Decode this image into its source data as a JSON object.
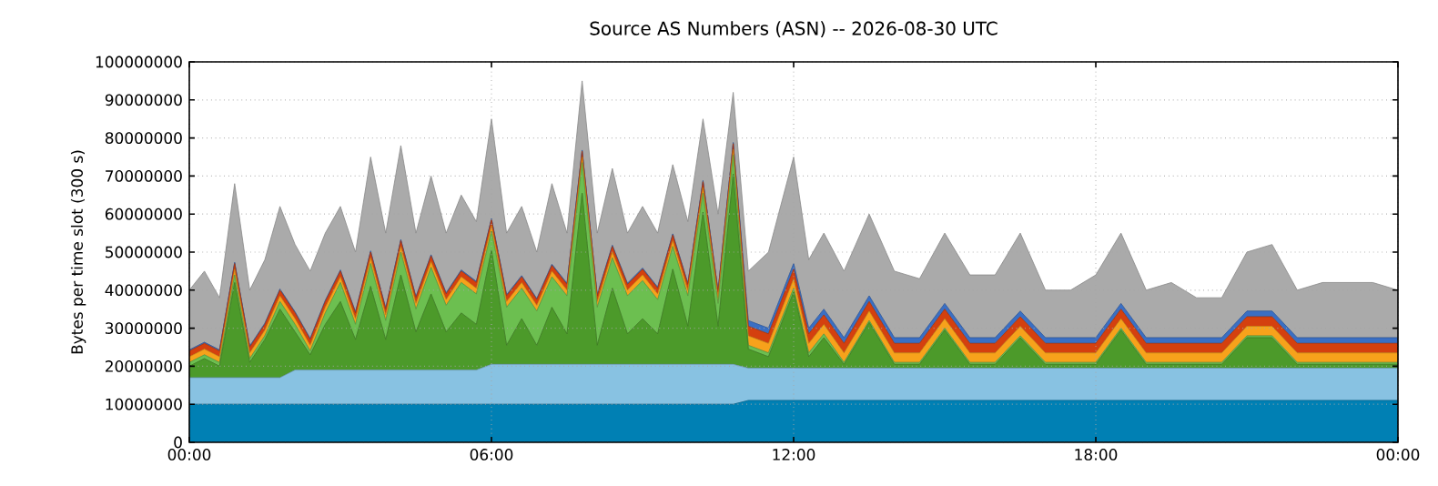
{
  "chart_data": {
    "type": "area",
    "stacked": true,
    "title": "Source AS Numbers (ASN) -- 2026-08-30 UTC",
    "ylabel": "Bytes per time slot (300 s)",
    "grid": true,
    "xlim": [
      0,
      24
    ],
    "xticks": [
      {
        "value": 0,
        "label": "00:00"
      },
      {
        "value": 6,
        "label": "06:00"
      },
      {
        "value": 12,
        "label": "12:00"
      },
      {
        "value": 18,
        "label": "18:00"
      },
      {
        "value": 24,
        "label": "00:00"
      }
    ],
    "ylim": [
      0,
      100000000
    ],
    "yticks": [
      0,
      10000000,
      20000000,
      30000000,
      40000000,
      50000000,
      60000000,
      70000000,
      80000000,
      90000000,
      100000000
    ],
    "x": [
      0,
      0.3,
      0.6,
      0.9,
      1.2,
      1.5,
      1.8,
      2.1,
      2.4,
      2.7,
      3.0,
      3.3,
      3.6,
      3.9,
      4.2,
      4.5,
      4.8,
      5.1,
      5.4,
      5.7,
      6.0,
      6.3,
      6.6,
      6.9,
      7.2,
      7.5,
      7.8,
      8.1,
      8.4,
      8.7,
      9.0,
      9.3,
      9.6,
      9.9,
      10.2,
      10.5,
      10.8,
      11.1,
      11.5,
      12.0,
      12.3,
      12.6,
      13.0,
      13.5,
      14.0,
      14.5,
      15.0,
      15.5,
      16.0,
      16.5,
      17.0,
      17.5,
      18.0,
      18.5,
      19.0,
      19.5,
      20.0,
      20.5,
      21.0,
      21.5,
      22.0,
      22.5,
      23.0,
      23.5,
      24.0
    ],
    "series": [
      {
        "color": "#0080b4",
        "values": [
          10000000,
          10000000,
          10000000,
          10000000,
          10000000,
          10000000,
          10000000,
          10000000,
          10000000,
          10000000,
          10000000,
          10000000,
          10000000,
          10000000,
          10000000,
          10000000,
          10000000,
          10000000,
          10000000,
          10000000,
          10000000,
          10000000,
          10000000,
          10000000,
          10000000,
          10000000,
          10000000,
          10000000,
          10000000,
          10000000,
          10000000,
          10000000,
          10000000,
          10000000,
          10000000,
          10000000,
          10000000,
          11000000,
          11000000,
          11000000,
          11000000,
          11000000,
          11000000,
          11000000,
          11000000,
          11000000,
          11000000,
          11000000,
          11000000,
          11000000,
          11000000,
          11000000,
          11000000,
          11000000,
          11000000,
          11000000,
          11000000,
          11000000,
          11000000,
          11000000,
          11000000,
          11000000,
          11000000,
          11000000,
          11000000
        ]
      },
      {
        "color": "#88c2e2",
        "values": [
          7000000,
          7000000,
          7000000,
          7000000,
          7000000,
          7000000,
          7000000,
          9000000,
          9000000,
          9000000,
          9000000,
          9000000,
          9000000,
          9000000,
          9000000,
          9000000,
          9000000,
          9000000,
          9000000,
          9000000,
          10500000,
          10500000,
          10500000,
          10500000,
          10500000,
          10500000,
          10500000,
          10500000,
          10500000,
          10500000,
          10500000,
          10500000,
          10500000,
          10500000,
          10500000,
          10500000,
          10500000,
          8500000,
          8500000,
          8500000,
          8500000,
          8500000,
          8500000,
          8500000,
          8500000,
          8500000,
          8500000,
          8500000,
          8500000,
          8500000,
          8500000,
          8500000,
          8500000,
          8500000,
          8500000,
          8500000,
          8500000,
          8500000,
          8500000,
          8500000,
          8500000,
          8500000,
          8500000,
          8500000,
          8500000
        ]
      },
      {
        "color": "#4c9a2a",
        "values": [
          3000000,
          5000000,
          3000000,
          25000000,
          4000000,
          10000000,
          18000000,
          10000000,
          4000000,
          12000000,
          18000000,
          8000000,
          22000000,
          8000000,
          25000000,
          10000000,
          20000000,
          10000000,
          15000000,
          12000000,
          30000000,
          5000000,
          12000000,
          5000000,
          15000000,
          8000000,
          45000000,
          5000000,
          20000000,
          8000000,
          12000000,
          8000000,
          25000000,
          10000000,
          40000000,
          10000000,
          50000000,
          5000000,
          3000000,
          20000000,
          3000000,
          8000000,
          1000000,
          12000000,
          1000000,
          1000000,
          10000000,
          1000000,
          1000000,
          8000000,
          1000000,
          1000000,
          1000000,
          10000000,
          1000000,
          1000000,
          1000000,
          1000000,
          8000000,
          8000000,
          1000000,
          1000000,
          1000000,
          1000000,
          1000000
        ]
      },
      {
        "color": "#6cbf50",
        "values": [
          1000000,
          1000000,
          1000000,
          2000000,
          1000000,
          1000000,
          2000000,
          2000000,
          1000000,
          3000000,
          5000000,
          4000000,
          6000000,
          5000000,
          6000000,
          6000000,
          7000000,
          7000000,
          8000000,
          8000000,
          5000000,
          10000000,
          8000000,
          9000000,
          8000000,
          10000000,
          8000000,
          10000000,
          8000000,
          10000000,
          10000000,
          9000000,
          6000000,
          8000000,
          5000000,
          6000000,
          5000000,
          1000000,
          1000000,
          1000000,
          1000000,
          1000000,
          500000,
          500000,
          500000,
          500000,
          500000,
          500000,
          500000,
          500000,
          500000,
          500000,
          500000,
          500000,
          500000,
          500000,
          500000,
          500000,
          500000,
          500000,
          500000,
          500000,
          500000,
          500000,
          500000
        ]
      },
      {
        "color": "#f7a21b",
        "values": [
          1500000,
          1500000,
          1500000,
          1500000,
          1500000,
          1500000,
          1500000,
          1500000,
          1500000,
          1500000,
          1500000,
          1500000,
          1500000,
          1500000,
          1500000,
          1500000,
          1500000,
          1500000,
          1500000,
          1500000,
          1500000,
          1500000,
          1500000,
          1500000,
          1500000,
          1500000,
          1500000,
          1500000,
          1500000,
          1500000,
          1500000,
          1500000,
          1500000,
          1500000,
          1500000,
          1500000,
          1500000,
          2500000,
          2500000,
          2500000,
          2500000,
          2500000,
          2500000,
          2500000,
          2500000,
          2500000,
          2500000,
          2500000,
          2500000,
          2500000,
          2500000,
          2500000,
          2500000,
          2500000,
          2500000,
          2500000,
          2500000,
          2500000,
          2500000,
          2500000,
          2500000,
          2500000,
          2500000,
          2500000,
          2500000
        ]
      },
      {
        "color": "#d4400f",
        "values": [
          1500000,
          1500000,
          1500000,
          1500000,
          1500000,
          1500000,
          1500000,
          1500000,
          1500000,
          1500000,
          1500000,
          1500000,
          1500000,
          1500000,
          1500000,
          1500000,
          1500000,
          1500000,
          1500000,
          1500000,
          1500000,
          1500000,
          1500000,
          1500000,
          1500000,
          1500000,
          1500000,
          1500000,
          1500000,
          1500000,
          1500000,
          1500000,
          1500000,
          1500000,
          1500000,
          1500000,
          1500000,
          2500000,
          2500000,
          2500000,
          2500000,
          2500000,
          2500000,
          2500000,
          2500000,
          2500000,
          2500000,
          2500000,
          2500000,
          2500000,
          2500000,
          2500000,
          2500000,
          2500000,
          2500000,
          2500000,
          2500000,
          2500000,
          2500000,
          2500000,
          2500000,
          2500000,
          2500000,
          2500000,
          2500000
        ]
      },
      {
        "color": "#3a6fc4",
        "values": [
          300000,
          300000,
          300000,
          300000,
          300000,
          300000,
          300000,
          300000,
          300000,
          300000,
          300000,
          300000,
          300000,
          300000,
          300000,
          300000,
          300000,
          300000,
          300000,
          300000,
          300000,
          300000,
          300000,
          300000,
          300000,
          300000,
          300000,
          300000,
          300000,
          300000,
          300000,
          300000,
          300000,
          300000,
          300000,
          300000,
          300000,
          1500000,
          1500000,
          1500000,
          1500000,
          1500000,
          1500000,
          1500000,
          1500000,
          1500000,
          1500000,
          1500000,
          1500000,
          1500000,
          1500000,
          1500000,
          1500000,
          1500000,
          1500000,
          1500000,
          1500000,
          1500000,
          1500000,
          1500000,
          1500000,
          1500000,
          1500000,
          1500000,
          1500000
        ]
      },
      {
        "color": "#aaaaaa",
        "values": [
          15700000,
          18700000,
          13700000,
          20700000,
          14700000,
          16700000,
          21700000,
          17700000,
          17700000,
          17700000,
          16700000,
          15700000,
          24700000,
          19700000,
          24700000,
          16700000,
          20700000,
          15700000,
          19700000,
          15700000,
          26200000,
          16200000,
          18200000,
          12200000,
          21200000,
          13200000,
          18200000,
          16200000,
          20200000,
          13200000,
          16200000,
          14200000,
          18200000,
          16200000,
          16200000,
          20200000,
          13200000,
          13000000,
          20000000,
          28000000,
          18000000,
          20000000,
          17500000,
          21500000,
          17500000,
          15500000,
          18500000,
          16500000,
          16500000,
          20500000,
          12500000,
          12500000,
          16500000,
          18500000,
          12500000,
          14500000,
          10500000,
          10500000,
          15500000,
          17500000,
          12500000,
          14500000,
          14500000,
          14500000,
          12500000
        ]
      }
    ]
  }
}
